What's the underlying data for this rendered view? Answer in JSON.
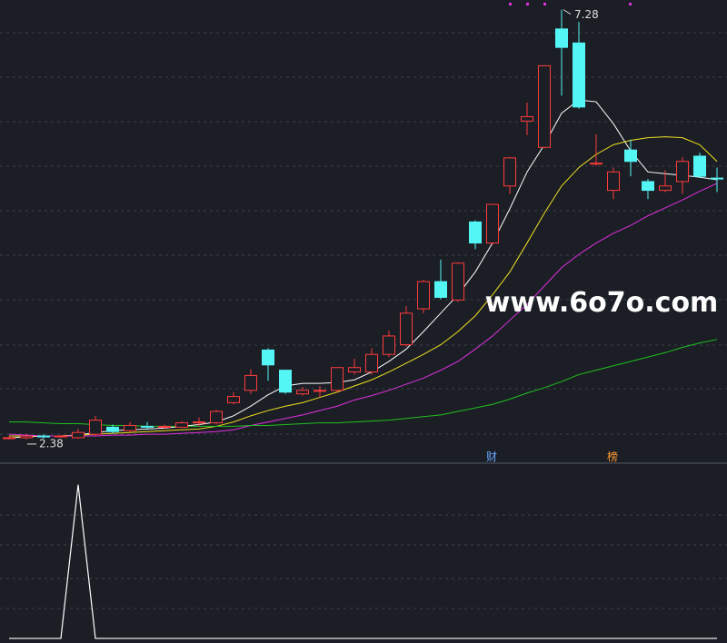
{
  "chart_data": [
    {
      "type": "candlestick",
      "open": [
        2.4,
        2.4,
        2.42,
        2.41,
        2.4,
        2.44,
        2.52,
        2.48,
        2.53,
        2.52,
        2.52,
        2.57,
        2.57,
        2.8,
        2.94,
        3.4,
        3.17,
        2.9,
        2.93,
        2.94,
        3.15,
        3.15,
        3.35,
        3.46,
        3.87,
        4.18,
        3.97,
        4.86,
        4.62,
        5.27,
        6.01,
        5.71,
        7.06,
        6.9,
        5.52,
        5.22,
        5.68,
        5.32,
        5.22,
        5.32,
        5.61,
        5.36
      ],
      "high": [
        2.42,
        2.44,
        2.44,
        2.43,
        2.5,
        2.65,
        2.55,
        2.58,
        2.58,
        2.55,
        2.59,
        2.63,
        2.72,
        2.92,
        3.18,
        3.42,
        3.17,
        2.98,
        2.99,
        3.2,
        3.3,
        3.42,
        3.62,
        3.9,
        4.2,
        4.43,
        4.4,
        4.88,
        5.06,
        5.6,
        6.22,
        6.64,
        7.28,
        7.14,
        5.86,
        5.48,
        5.8,
        5.35,
        5.45,
        5.6,
        5.65,
        5.48
      ],
      "low": [
        2.38,
        2.38,
        2.39,
        2.4,
        2.39,
        2.42,
        2.45,
        2.46,
        2.49,
        2.5,
        2.51,
        2.53,
        2.55,
        2.78,
        2.9,
        3.05,
        2.9,
        2.88,
        2.86,
        2.92,
        3.12,
        3.12,
        3.32,
        3.44,
        3.82,
        3.98,
        3.95,
        4.55,
        4.6,
        5.18,
        5.85,
        5.7,
        6.3,
        6.15,
        5.5,
        5.12,
        5.38,
        5.12,
        5.2,
        5.18,
        5.36,
        5.2
      ],
      "close": [
        2.4,
        2.42,
        2.41,
        2.42,
        2.46,
        2.6,
        2.47,
        2.54,
        2.52,
        2.53,
        2.57,
        2.58,
        2.7,
        2.87,
        3.11,
        3.23,
        2.92,
        2.94,
        2.94,
        3.2,
        3.2,
        3.35,
        3.56,
        3.82,
        4.18,
        4.0,
        4.39,
        4.62,
        5.06,
        5.59,
        6.06,
        6.64,
        6.85,
        6.17,
        5.53,
        5.43,
        5.55,
        5.22,
        5.27,
        5.55,
        5.38,
        5.35
      ],
      "up_color": "#ff3b3b",
      "down_color": "#54f5f5",
      "series": [
        {
          "color": "#ffffff",
          "values": [
            2.4,
            2.41,
            2.42,
            2.42,
            2.43,
            2.46,
            2.48,
            2.49,
            2.5,
            2.51,
            2.53,
            2.55,
            2.58,
            2.65,
            2.76,
            2.89,
            2.99,
            3.02,
            3.02,
            3.03,
            3.06,
            3.15,
            3.27,
            3.41,
            3.61,
            3.82,
            4.03,
            4.29,
            4.62,
            5.01,
            5.43,
            5.74,
            6.1,
            6.25,
            6.23,
            5.98,
            5.67,
            5.43,
            5.41,
            5.39,
            5.37,
            5.34
          ]
        },
        {
          "color": "#f0e020",
          "values": [
            2.42,
            2.42,
            2.42,
            2.42,
            2.43,
            2.44,
            2.45,
            2.46,
            2.47,
            2.48,
            2.49,
            2.5,
            2.53,
            2.58,
            2.65,
            2.71,
            2.76,
            2.8,
            2.86,
            2.92,
            2.99,
            3.06,
            3.15,
            3.25,
            3.35,
            3.46,
            3.61,
            3.79,
            4.03,
            4.29,
            4.62,
            4.96,
            5.27,
            5.48,
            5.63,
            5.74,
            5.79,
            5.82,
            5.83,
            5.82,
            5.74,
            5.55
          ]
        },
        {
          "color": "#e030e0",
          "values": [
            2.44,
            2.43,
            2.42,
            2.42,
            2.42,
            2.42,
            2.43,
            2.43,
            2.44,
            2.44,
            2.45,
            2.46,
            2.47,
            2.49,
            2.54,
            2.58,
            2.62,
            2.66,
            2.71,
            2.76,
            2.83,
            2.88,
            2.94,
            3.01,
            3.08,
            3.17,
            3.27,
            3.41,
            3.56,
            3.74,
            3.92,
            4.13,
            4.34,
            4.49,
            4.62,
            4.73,
            4.82,
            4.93,
            5.02,
            5.11,
            5.21,
            5.3
          ]
        },
        {
          "color": "#20c020",
          "values": [
            2.58,
            2.58,
            2.57,
            2.56,
            2.56,
            2.55,
            2.54,
            2.54,
            2.53,
            2.53,
            2.53,
            2.53,
            2.53,
            2.53,
            2.54,
            2.54,
            2.55,
            2.56,
            2.57,
            2.57,
            2.58,
            2.59,
            2.6,
            2.62,
            2.64,
            2.66,
            2.7,
            2.74,
            2.78,
            2.84,
            2.91,
            2.97,
            3.04,
            3.12,
            3.17,
            3.22,
            3.27,
            3.32,
            3.37,
            3.43,
            3.48,
            3.52
          ]
        }
      ],
      "high_label": "7.28",
      "low_label": "2.38",
      "ylim": [
        2.11,
        7.39
      ]
    },
    {
      "type": "line",
      "color": "#ffffff",
      "values": [
        0,
        0,
        0,
        0,
        1,
        0,
        0,
        0,
        0,
        0,
        0,
        0,
        0,
        0,
        0,
        0,
        0,
        0,
        0,
        0,
        0,
        0,
        0,
        0,
        0,
        0,
        0,
        0,
        0,
        0,
        0,
        0,
        0,
        0,
        0,
        0,
        0,
        0,
        0,
        0,
        0,
        0
      ],
      "ylim": [
        -0.03,
        1.14
      ]
    }
  ],
  "watermark": "www.6o7o.com",
  "markers": [
    "财",
    "榜"
  ]
}
